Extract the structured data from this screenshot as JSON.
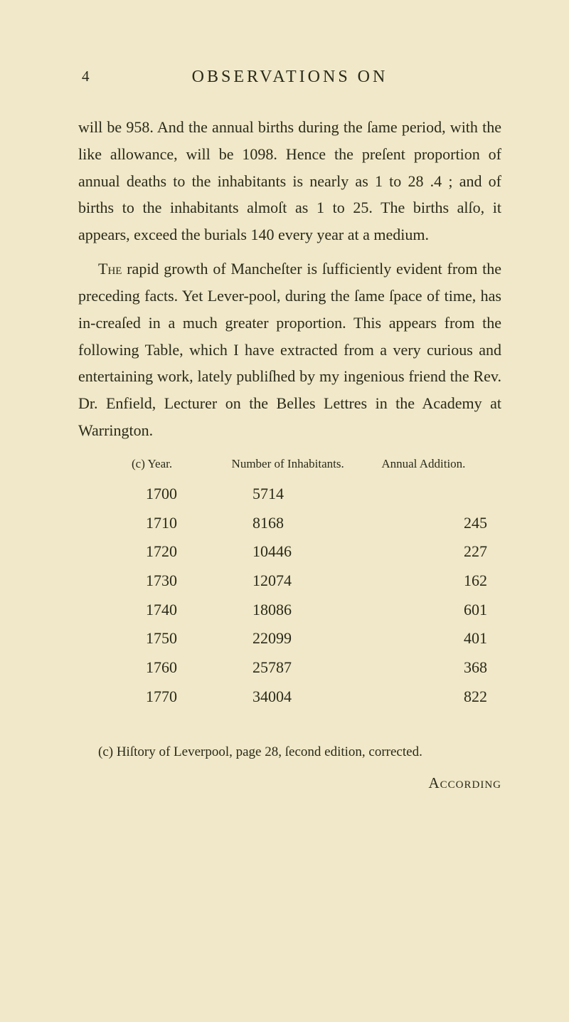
{
  "page": {
    "number": "4",
    "header": "OBSERVATIONS ON",
    "catchword": "According"
  },
  "paragraphs": {
    "p1": "will be 958. And the annual births during the ſame period, with the like allowance, will be 1098. Hence the preſent proportion of annual deaths to the inhabitants is nearly as 1 to 28 .4 ; and of births to the inhabitants almoſt as 1 to 25. The births alſo, it appears, exceed the burials 140 every year at a medium.",
    "p2_lead": "The",
    "p2_rest": " rapid growth of Mancheſter is ſufficiently evident from the preceding facts. Yet Lever-pool, during the ſame ſpace of time, has in-creaſed in a much greater proportion. This appears from the following Table, which I have extracted from a very curious and entertaining work, lately publiſhed by my ingenious friend the Rev. Dr. Enfield, Lecturer on the Belles Lettres in the Academy at Warrington."
  },
  "table": {
    "headers": {
      "year": "(c) Year.",
      "inhabitants": "Number of Inhabitants.",
      "addition": "Annual Addition."
    },
    "rows": [
      {
        "year": "1700",
        "inhabitants": "5714",
        "addition": ""
      },
      {
        "year": "1710",
        "inhabitants": "8168",
        "addition": "245"
      },
      {
        "year": "1720",
        "inhabitants": "10446",
        "addition": "227"
      },
      {
        "year": "1730",
        "inhabitants": "12074",
        "addition": "162"
      },
      {
        "year": "1740",
        "inhabitants": "18086",
        "addition": "601"
      },
      {
        "year": "1750",
        "inhabitants": "22099",
        "addition": "401"
      },
      {
        "year": "1760",
        "inhabitants": "25787",
        "addition": "368"
      },
      {
        "year": "1770",
        "inhabitants": "34004",
        "addition": "822"
      }
    ]
  },
  "footnote": {
    "text": "(c) Hiſtory of Leverpool, page 28, ſecond edition, corrected."
  },
  "style": {
    "background_color": "#f0e8c8",
    "text_color": "#2a2a1a",
    "body_fontsize": 22,
    "header_fontsize": 24,
    "footnote_fontsize": 19,
    "table_header_fontsize": 17,
    "line_height": 1.72
  }
}
